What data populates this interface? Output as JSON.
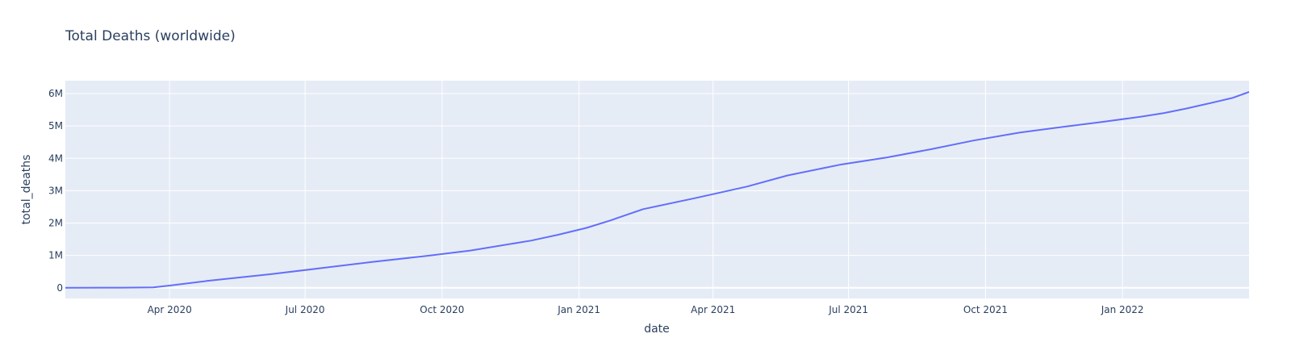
{
  "chart_data": {
    "type": "line",
    "title": "Total Deaths (worldwide)",
    "xlabel": "date",
    "ylabel": "total_deaths",
    "x_tick_labels": [
      "Apr 2020",
      "Jul 2020",
      "Oct 2020",
      "Jan 2021",
      "Apr 2021",
      "Jul 2021",
      "Oct 2021",
      "Jan 2022"
    ],
    "x_tick_dates": [
      "2020-04-01",
      "2020-07-01",
      "2020-10-01",
      "2021-01-01",
      "2021-04-01",
      "2021-07-01",
      "2021-10-01",
      "2022-01-01"
    ],
    "y_tick_labels": [
      "0",
      "1M",
      "2M",
      "3M",
      "4M",
      "5M",
      "6M"
    ],
    "y_tick_values": [
      0,
      1000000,
      2000000,
      3000000,
      4000000,
      5000000,
      6000000
    ],
    "xlim": [
      "2020-01-22",
      "2022-03-27"
    ],
    "ylim": [
      -330000,
      6400000
    ],
    "grid": true,
    "colors": {
      "plot_bg": "#e5ecf6",
      "grid": "#ffffff",
      "line": "#636efa",
      "text": "#2a3f5f"
    },
    "series": [
      {
        "x": [
          "2020-01-22",
          "2020-02-29",
          "2020-03-21",
          "2020-04-01",
          "2020-04-26",
          "2020-06-08",
          "2020-07-14",
          "2020-08-15",
          "2020-09-20",
          "2020-10-20",
          "2020-11-30",
          "2020-12-18",
          "2021-01-06",
          "2021-01-22",
          "2021-02-13",
          "2021-03-21",
          "2021-04-24",
          "2021-05-21",
          "2021-06-25",
          "2021-07-27",
          "2021-08-25",
          "2021-09-23",
          "2021-10-23",
          "2021-11-20",
          "2021-12-19",
          "2022-01-14",
          "2022-01-29",
          "2022-02-13",
          "2022-03-06",
          "2022-03-16",
          "2022-03-27"
        ],
        "y": [
          17,
          3000,
          12000,
          70000,
          210000,
          420000,
          620000,
          800000,
          980000,
          1150000,
          1460000,
          1640000,
          1850000,
          2080000,
          2430000,
          2780000,
          3130000,
          3470000,
          3800000,
          4030000,
          4280000,
          4550000,
          4790000,
          4960000,
          5130000,
          5290000,
          5400000,
          5540000,
          5760000,
          5870000,
          6050000
        ]
      }
    ]
  }
}
